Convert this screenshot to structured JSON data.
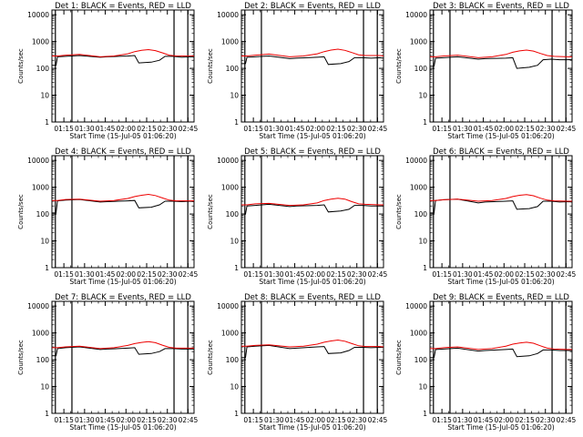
{
  "figure": {
    "shared": {
      "type": "line",
      "ylabel": "Counts/sec",
      "xlabel": "Start Time (15-Jul-05 01:06:20)",
      "yscale": "log",
      "ylim": [
        1,
        15000
      ],
      "yticks": [
        1,
        10,
        100,
        1000,
        10000
      ],
      "ytick_labels": [
        "1",
        "10",
        "100",
        "1000",
        "10000"
      ],
      "xlim_minutes": [
        0,
        103
      ],
      "xtick_minutes": [
        8.67,
        23.67,
        38.67,
        53.67,
        68.67,
        83.67,
        98.67
      ],
      "xtick_labels": [
        "01:15",
        "01:30",
        "01:45",
        "02:00",
        "02:15",
        "02:30",
        "02:45"
      ],
      "vertical_markers_minutes": [
        2.5,
        14.5,
        88.5,
        98.5
      ],
      "series_colors": {
        "events": "#000000",
        "lld": "#ee0000"
      },
      "x_unit": "minutes since 15-Jul-05 01:06:20"
    },
    "panels": [
      {
        "title": "Det 1: BLACK = Events, RED = LLD",
        "chart_data": {
          "type": "line",
          "series": [
            {
              "name": "Events",
              "x": [
                0,
                3,
                4,
                10,
                20,
                35,
                40,
                55,
                60,
                63,
                72,
                78,
                82,
                88,
                94,
                100,
                103
              ],
              "y": [
                130,
                130,
                270,
                280,
                300,
                260,
                270,
                290,
                300,
                160,
                170,
                200,
                280,
                280,
                260,
                270,
                265
              ]
            },
            {
              "name": "LLD",
              "x": [
                0,
                4,
                10,
                20,
                35,
                45,
                55,
                60,
                65,
                70,
                75,
                80,
                85,
                90,
                100,
                103
              ],
              "y": [
                290,
                290,
                310,
                330,
                270,
                290,
                350,
                420,
                470,
                500,
                460,
                380,
                310,
                290,
                290,
                290
              ]
            }
          ]
        }
      },
      {
        "title": "Det 2: BLACK = Events, RED = LLD",
        "chart_data": {
          "type": "line",
          "series": [
            {
              "name": "Events",
              "x": [
                0,
                3,
                4,
                10,
                20,
                35,
                40,
                55,
                60,
                63,
                72,
                78,
                82,
                88,
                94,
                100,
                103
              ],
              "y": [
                150,
                150,
                260,
                270,
                290,
                230,
                240,
                260,
                270,
                140,
                150,
                180,
                250,
                250,
                240,
                250,
                240
              ]
            },
            {
              "name": "LLD",
              "x": [
                0,
                4,
                10,
                20,
                35,
                45,
                55,
                60,
                65,
                70,
                75,
                80,
                85,
                90,
                100,
                103
              ],
              "y": [
                290,
                290,
                310,
                340,
                270,
                290,
                350,
                420,
                480,
                520,
                470,
                390,
                320,
                300,
                300,
                290
              ]
            }
          ]
        }
      },
      {
        "title": "Det 3: BLACK = Events, RED = LLD",
        "chart_data": {
          "type": "line",
          "series": [
            {
              "name": "Events",
              "x": [
                0,
                3,
                4,
                10,
                20,
                35,
                40,
                55,
                60,
                63,
                72,
                78,
                82,
                88,
                94,
                100,
                103
              ],
              "y": [
                120,
                120,
                240,
                250,
                270,
                220,
                230,
                240,
                250,
                100,
                110,
                130,
                210,
                220,
                210,
                210,
                215
              ]
            },
            {
              "name": "LLD",
              "x": [
                0,
                4,
                10,
                20,
                35,
                45,
                55,
                60,
                65,
                70,
                75,
                80,
                85,
                90,
                100,
                103
              ],
              "y": [
                270,
                270,
                290,
                310,
                250,
                270,
                330,
                400,
                450,
                480,
                440,
                360,
                300,
                280,
                270,
                270
              ]
            }
          ]
        }
      },
      {
        "title": "Det 4: BLACK = Events, RED = LLD",
        "chart_data": {
          "type": "line",
          "series": [
            {
              "name": "Events",
              "x": [
                0,
                3,
                4,
                10,
                20,
                35,
                40,
                55,
                60,
                63,
                72,
                78,
                82,
                88,
                94,
                100,
                103
              ],
              "y": [
                110,
                110,
                310,
                330,
                350,
                280,
                290,
                310,
                320,
                170,
                180,
                220,
                300,
                300,
                290,
                300,
                290
              ]
            },
            {
              "name": "LLD",
              "x": [
                0,
                4,
                10,
                20,
                35,
                45,
                55,
                60,
                65,
                70,
                75,
                80,
                85,
                90,
                100,
                103
              ],
              "y": [
                320,
                320,
                350,
                360,
                300,
                320,
                380,
                450,
                500,
                540,
                490,
                400,
                330,
                310,
                310,
                310
              ]
            }
          ]
        }
      },
      {
        "title": "Det 5: BLACK = Events, RED = LLD",
        "chart_data": {
          "type": "line",
          "series": [
            {
              "name": "Events",
              "x": [
                0,
                3,
                4,
                10,
                20,
                35,
                40,
                55,
                60,
                63,
                72,
                78,
                82,
                88,
                94,
                100,
                103
              ],
              "y": [
                100,
                100,
                200,
                210,
                230,
                190,
                200,
                210,
                220,
                120,
                130,
                150,
                210,
                210,
                200,
                200,
                200
              ]
            },
            {
              "name": "LLD",
              "x": [
                0,
                4,
                10,
                20,
                35,
                45,
                55,
                60,
                65,
                70,
                75,
                80,
                85,
                90,
                100,
                103
              ],
              "y": [
                220,
                220,
                240,
                250,
                210,
                220,
                260,
                320,
                360,
                390,
                360,
                290,
                240,
                230,
                220,
                220
              ]
            }
          ]
        }
      },
      {
        "title": "Det 6: BLACK = Events, RED = LLD",
        "chart_data": {
          "type": "line",
          "series": [
            {
              "name": "Events",
              "x": [
                0,
                3,
                4,
                10,
                20,
                35,
                40,
                55,
                60,
                63,
                72,
                78,
                82,
                88,
                94,
                100,
                103
              ],
              "y": [
                110,
                110,
                320,
                340,
                360,
                260,
                280,
                300,
                310,
                150,
                160,
                190,
                300,
                300,
                280,
                290,
                280
              ]
            },
            {
              "name": "LLD",
              "x": [
                0,
                4,
                10,
                20,
                35,
                45,
                55,
                60,
                65,
                70,
                75,
                80,
                85,
                90,
                100,
                103
              ],
              "y": [
                320,
                320,
                340,
                360,
                300,
                320,
                380,
                450,
                500,
                530,
                480,
                390,
                330,
                310,
                300,
                300
              ]
            }
          ]
        }
      },
      {
        "title": "Det 7: BLACK = Events, RED = LLD",
        "chart_data": {
          "type": "line",
          "series": [
            {
              "name": "Events",
              "x": [
                0,
                3,
                4,
                10,
                20,
                35,
                40,
                55,
                60,
                63,
                72,
                78,
                82,
                88,
                94,
                100,
                103
              ],
              "y": [
                140,
                140,
                260,
                280,
                300,
                240,
                250,
                270,
                280,
                160,
                170,
                200,
                260,
                260,
                250,
                250,
                250
              ]
            },
            {
              "name": "LLD",
              "x": [
                0,
                4,
                10,
                20,
                35,
                45,
                55,
                60,
                65,
                70,
                75,
                80,
                85,
                90,
                100,
                103
              ],
              "y": [
                280,
                280,
                300,
                320,
                260,
                280,
                340,
                400,
                440,
                470,
                430,
                350,
                290,
                270,
                270,
                270
              ]
            }
          ]
        }
      },
      {
        "title": "Det 8: BLACK = Events, RED = LLD",
        "chart_data": {
          "type": "line",
          "series": [
            {
              "name": "Events",
              "x": [
                0,
                3,
                4,
                10,
                20,
                35,
                40,
                55,
                60,
                63,
                72,
                78,
                82,
                88,
                94,
                100,
                103
              ],
              "y": [
                120,
                120,
                300,
                320,
                340,
                260,
                270,
                300,
                310,
                170,
                180,
                220,
                290,
                290,
                280,
                290,
                290
              ]
            },
            {
              "name": "LLD",
              "x": [
                0,
                4,
                10,
                20,
                35,
                45,
                55,
                60,
                65,
                70,
                75,
                80,
                85,
                90,
                100,
                103
              ],
              "y": [
                320,
                320,
                340,
                360,
                300,
                320,
                380,
                450,
                500,
                540,
                490,
                400,
                330,
                310,
                310,
                300
              ]
            }
          ]
        }
      },
      {
        "title": "Det 9: BLACK = Events, RED = LLD",
        "chart_data": {
          "type": "line",
          "series": [
            {
              "name": "Events",
              "x": [
                0,
                3,
                4,
                10,
                20,
                35,
                40,
                55,
                60,
                63,
                72,
                78,
                82,
                88,
                94,
                100,
                103
              ],
              "y": [
                120,
                120,
                240,
                250,
                270,
                210,
                220,
                240,
                250,
                130,
                140,
                170,
                230,
                230,
                220,
                220,
                220
              ]
            },
            {
              "name": "LLD",
              "x": [
                0,
                4,
                10,
                20,
                35,
                45,
                55,
                60,
                65,
                70,
                75,
                80,
                85,
                90,
                100,
                103
              ],
              "y": [
                260,
                260,
                280,
                300,
                240,
                260,
                320,
                380,
                420,
                450,
                410,
                330,
                270,
                250,
                240,
                240
              ]
            }
          ]
        }
      }
    ]
  }
}
